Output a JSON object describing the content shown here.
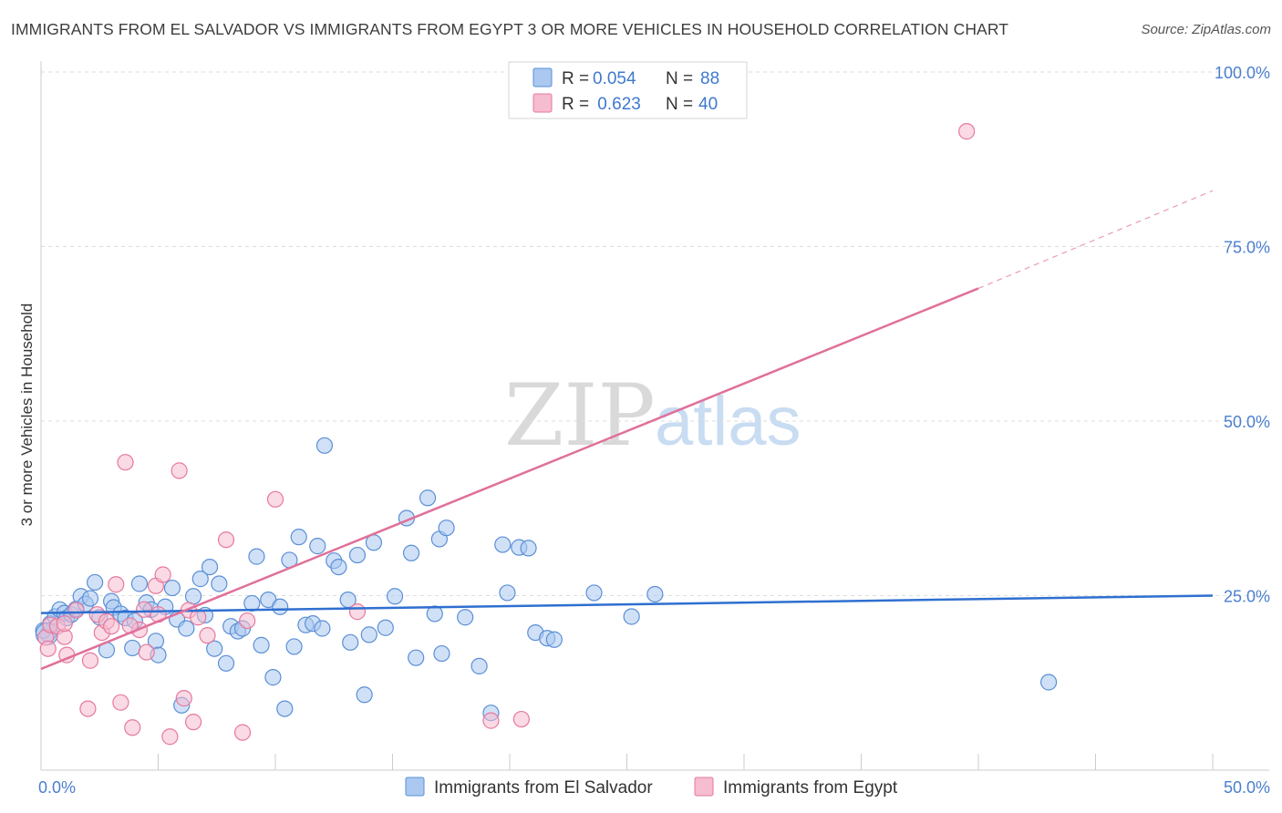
{
  "title": "IMMIGRANTS FROM EL SALVADOR VS IMMIGRANTS FROM EGYPT 3 OR MORE VEHICLES IN HOUSEHOLD CORRELATION CHART",
  "source": "Source: ZipAtlas.com",
  "watermark": {
    "zip": "ZIP",
    "atlas": "atlas"
  },
  "colors": {
    "el_salvador_fill": "#aac8f0",
    "el_salvador_stroke": "#5b8fd6",
    "el_salvador_line": "#2f6fd0",
    "egypt_fill": "#f6bcd0",
    "egypt_stroke": "#e6799e",
    "egypt_line": "#e0709a",
    "tick_text": "#4a7fcf",
    "grid": "#dddddd"
  },
  "legend": {
    "rows": [
      {
        "r_label": "R = ",
        "r_value": "0.054",
        "n_label": "N = ",
        "n_value": "88"
      },
      {
        "r_label": "R = ",
        "r_value": " 0.623",
        "n_label": "N = ",
        "n_value": "40"
      }
    ]
  },
  "chart_data": {
    "type": "scatter",
    "title": "IMMIGRANTS FROM EL SALVADOR VS IMMIGRANTS FROM EGYPT 3 OR MORE VEHICLES IN HOUSEHOLD CORRELATION CHART",
    "xlabel": "",
    "ylabel": "3 or more Vehicles in Household",
    "xlim": [
      0,
      50
    ],
    "ylim": [
      0,
      100
    ],
    "x_tick_labels": [
      "0.0%",
      "50.0%"
    ],
    "y_ticks": [
      {
        "value": 25,
        "label": "25.0%"
      },
      {
        "value": 50,
        "label": "50.0%"
      },
      {
        "value": 75,
        "label": "75.0%"
      },
      {
        "value": 100,
        "label": "100.0%"
      }
    ],
    "grid": true,
    "legend_position": "top-center",
    "series": [
      {
        "name": "Immigrants from El Salvador",
        "R": 0.054,
        "N": 88,
        "trend": {
          "x": [
            0,
            50
          ],
          "y": [
            22.5,
            25.0
          ],
          "style": "solid"
        },
        "points": [
          [
            0.3,
            19.5
          ],
          [
            0.4,
            21
          ],
          [
            0.6,
            22
          ],
          [
            0.8,
            23
          ],
          [
            1.0,
            22.5
          ],
          [
            1.1,
            21.8
          ],
          [
            1.3,
            22.3
          ],
          [
            1.5,
            23.1
          ],
          [
            1.7,
            24.9
          ],
          [
            1.9,
            23.8
          ],
          [
            2.1,
            24.6
          ],
          [
            2.3,
            26.9
          ],
          [
            2.5,
            21.9
          ],
          [
            2.8,
            17.2
          ],
          [
            3.0,
            24.2
          ],
          [
            3.1,
            23.3
          ],
          [
            3.4,
            22.4
          ],
          [
            3.6,
            21.8
          ],
          [
            3.9,
            17.5
          ],
          [
            4.0,
            21.4
          ],
          [
            4.2,
            26.7
          ],
          [
            4.5,
            24.0
          ],
          [
            4.7,
            23.0
          ],
          [
            4.9,
            18.5
          ],
          [
            5.0,
            16.5
          ],
          [
            5.3,
            23.4
          ],
          [
            5.6,
            26.1
          ],
          [
            5.8,
            21.6
          ],
          [
            6.0,
            9.3
          ],
          [
            6.2,
            20.3
          ],
          [
            6.5,
            24.9
          ],
          [
            6.8,
            27.4
          ],
          [
            7.0,
            22.2
          ],
          [
            7.2,
            29.1
          ],
          [
            7.4,
            17.4
          ],
          [
            7.6,
            26.7
          ],
          [
            7.9,
            15.3
          ],
          [
            8.1,
            20.6
          ],
          [
            8.4,
            19.9
          ],
          [
            8.6,
            20.3
          ],
          [
            9.0,
            23.9
          ],
          [
            9.2,
            30.6
          ],
          [
            9.4,
            17.9
          ],
          [
            9.7,
            24.4
          ],
          [
            9.9,
            13.3
          ],
          [
            10.2,
            23.4
          ],
          [
            10.4,
            8.8
          ],
          [
            10.6,
            30.1
          ],
          [
            10.8,
            17.7
          ],
          [
            11.0,
            33.4
          ],
          [
            11.3,
            20.8
          ],
          [
            11.6,
            21.0
          ],
          [
            11.8,
            32.1
          ],
          [
            12.0,
            20.3
          ],
          [
            12.1,
            46.5
          ],
          [
            12.5,
            30.0
          ],
          [
            12.7,
            29.1
          ],
          [
            13.1,
            24.4
          ],
          [
            13.2,
            18.3
          ],
          [
            13.5,
            30.8
          ],
          [
            13.8,
            10.8
          ],
          [
            14.0,
            19.4
          ],
          [
            14.2,
            32.6
          ],
          [
            14.7,
            20.4
          ],
          [
            15.1,
            24.9
          ],
          [
            15.6,
            36.1
          ],
          [
            15.8,
            31.1
          ],
          [
            16.0,
            16.1
          ],
          [
            16.5,
            39.0
          ],
          [
            16.8,
            22.4
          ],
          [
            17.0,
            33.1
          ],
          [
            17.1,
            16.7
          ],
          [
            17.3,
            34.7
          ],
          [
            18.1,
            21.9
          ],
          [
            18.7,
            14.9
          ],
          [
            19.2,
            8.2
          ],
          [
            19.7,
            32.3
          ],
          [
            19.9,
            25.4
          ],
          [
            20.4,
            31.9
          ],
          [
            20.8,
            31.8
          ],
          [
            21.1,
            19.7
          ],
          [
            21.6,
            18.9
          ],
          [
            21.9,
            18.7
          ],
          [
            23.6,
            25.4
          ],
          [
            25.2,
            22.0
          ],
          [
            26.2,
            25.2
          ],
          [
            43.0,
            12.6
          ],
          [
            0.1,
            20.0
          ]
        ]
      },
      {
        "name": "Immigrants from Egypt",
        "R": 0.623,
        "N": 40,
        "trend": {
          "x": [
            0,
            40
          ],
          "y": [
            14.5,
            69.0
          ],
          "style": "solid",
          "dashed_extension": {
            "x": [
              40,
              50
            ],
            "y": [
              69.0,
              83.0
            ]
          }
        },
        "points": [
          [
            0.2,
            19.0
          ],
          [
            0.3,
            17.4
          ],
          [
            0.4,
            20.8
          ],
          [
            0.7,
            20.6
          ],
          [
            1.0,
            19.1
          ],
          [
            1.0,
            21.0
          ],
          [
            1.1,
            16.5
          ],
          [
            1.5,
            22.9
          ],
          [
            2.0,
            8.8
          ],
          [
            2.1,
            15.7
          ],
          [
            2.4,
            22.3
          ],
          [
            2.6,
            19.7
          ],
          [
            2.8,
            21.3
          ],
          [
            3.0,
            20.6
          ],
          [
            3.2,
            26.6
          ],
          [
            3.4,
            9.7
          ],
          [
            3.6,
            44.1
          ],
          [
            3.9,
            6.1
          ],
          [
            4.2,
            20.1
          ],
          [
            4.4,
            23.0
          ],
          [
            4.5,
            16.9
          ],
          [
            4.9,
            26.4
          ],
          [
            5.2,
            28.0
          ],
          [
            5.5,
            4.8
          ],
          [
            5.9,
            42.9
          ],
          [
            6.1,
            10.3
          ],
          [
            6.3,
            22.9
          ],
          [
            6.5,
            6.9
          ],
          [
            6.7,
            21.9
          ],
          [
            7.1,
            19.3
          ],
          [
            7.9,
            33.0
          ],
          [
            8.6,
            5.4
          ],
          [
            8.8,
            21.4
          ],
          [
            10.0,
            38.8
          ],
          [
            13.5,
            22.7
          ],
          [
            19.2,
            7.1
          ],
          [
            39.5,
            91.5
          ],
          [
            20.5,
            7.3
          ],
          [
            5.0,
            22.3
          ],
          [
            3.8,
            20.7
          ]
        ]
      }
    ]
  }
}
